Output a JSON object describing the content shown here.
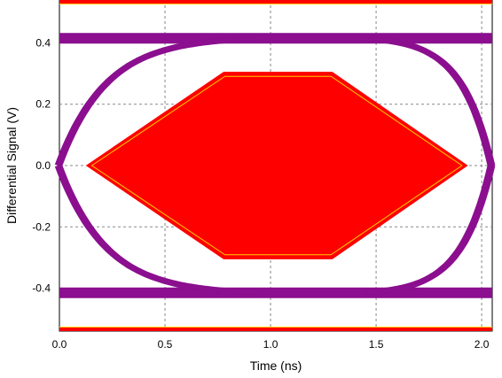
{
  "chart_data": {
    "type": "line",
    "title": "",
    "xlabel": "Time (ns)",
    "ylabel": "Differential Signal (V)",
    "xlim": [
      0.0,
      2.05
    ],
    "ylim": [
      -0.54,
      0.54
    ],
    "x_ticks": [
      0.0,
      0.5,
      1.0,
      1.5,
      2.0
    ],
    "x_tick_labels": [
      "0.0",
      "0.5",
      "1.0",
      "1.5",
      "2.0"
    ],
    "y_ticks": [
      0.4,
      0.2,
      0.0,
      -0.2,
      -0.4
    ],
    "y_tick_labels": [
      "0.4",
      "0.2",
      "0.0",
      "-0.2",
      "-0.4"
    ],
    "grid": true,
    "colors": {
      "eye_trace": "#8b0f8f",
      "mask_fill": "#ff0000",
      "mask_edge": "#ffcc00",
      "limit_band": "#ff0000",
      "grid": "#888888"
    },
    "eye_levels": {
      "high": 0.415,
      "low": -0.415
    },
    "crossings": [
      0.0,
      2.05
    ],
    "mask_polygon": {
      "x": [
        0.14,
        0.78,
        1.29,
        1.92,
        1.29,
        0.78
      ],
      "y": [
        0.0,
        0.3,
        0.3,
        0.0,
        -0.3,
        -0.3
      ]
    },
    "limit_lines": [
      0.54,
      -0.54
    ]
  }
}
